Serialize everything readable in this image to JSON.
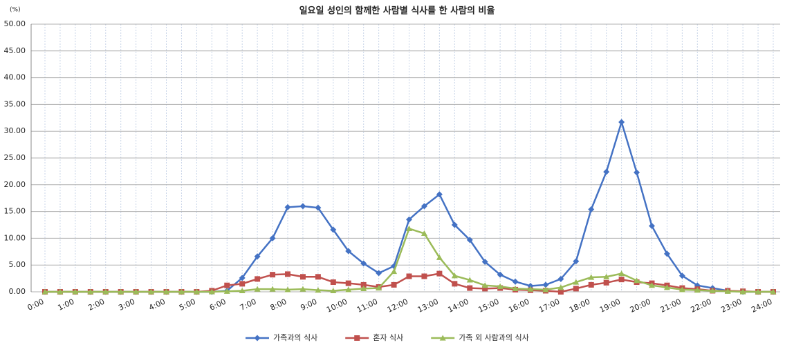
{
  "chart_data": {
    "type": "line",
    "title": "일요일 성인의 함께한 사람별 식사를 한 사람의 비율",
    "y_unit": "(%)",
    "categories": [
      "0:00",
      null,
      "1:00",
      null,
      "2:00",
      null,
      "3:00",
      null,
      "4:00",
      null,
      "5:00",
      null,
      "6:00",
      null,
      "7:00",
      null,
      "8:00",
      null,
      "9:00",
      null,
      "10:00",
      null,
      "11:00",
      null,
      "12:00",
      null,
      "13:00",
      null,
      "14:00",
      null,
      "15:00",
      null,
      "16:00",
      null,
      "17:00",
      null,
      "18:00",
      null,
      "19:00",
      null,
      "20:00",
      null,
      "21:00",
      null,
      "22:00",
      null,
      "23:00",
      null,
      "24:00"
    ],
    "series": [
      {
        "name": "가족과의 식사",
        "color": "#4472c4",
        "marker": "diamond",
        "values": [
          0,
          0,
          0,
          0,
          0,
          0,
          0,
          0,
          0,
          0,
          0,
          0,
          0.2,
          2.6,
          6.6,
          10.0,
          15.8,
          16.0,
          15.7,
          11.6,
          7.6,
          5.3,
          3.5,
          4.8,
          13.5,
          16.0,
          18.2,
          12.5,
          9.7,
          5.6,
          3.2,
          1.9,
          1.1,
          1.3,
          2.4,
          5.7,
          15.4,
          22.4,
          31.7,
          22.3,
          12.3,
          7.1,
          3.0,
          1.2,
          0.7,
          0.2,
          0,
          0,
          0
        ]
      },
      {
        "name": "혼자 식사",
        "color": "#c0504d",
        "marker": "square",
        "values": [
          0,
          0,
          0,
          0,
          0,
          0,
          0,
          0,
          0,
          0,
          0,
          0.2,
          1.2,
          1.5,
          2.4,
          3.2,
          3.3,
          2.8,
          2.8,
          1.8,
          1.6,
          1.3,
          0.9,
          1.3,
          2.9,
          2.9,
          3.4,
          1.5,
          0.7,
          0.6,
          0.7,
          0.4,
          0.3,
          0.2,
          0.0,
          0.6,
          1.3,
          1.7,
          2.3,
          1.8,
          1.6,
          1.2,
          0.7,
          0.5,
          0.2,
          0.2,
          0.1,
          0,
          0
        ]
      },
      {
        "name": "가족 외 사람과의 식사",
        "color": "#9bbb59",
        "marker": "triangle",
        "values": [
          0,
          0,
          0,
          0,
          0,
          0,
          0,
          0,
          0,
          0,
          0,
          0,
          0.1,
          0.2,
          0.5,
          0.5,
          0.4,
          0.5,
          0.3,
          0.2,
          0.4,
          0.6,
          0.7,
          3.8,
          11.8,
          10.9,
          6.4,
          3.0,
          2.2,
          1.2,
          1.0,
          0.6,
          0.5,
          0.4,
          0.8,
          1.8,
          2.7,
          2.8,
          3.4,
          2.1,
          1.2,
          0.8,
          0.4,
          0.3,
          0.2,
          0.1,
          0,
          0,
          0
        ]
      }
    ],
    "ylim": [
      0,
      50
    ],
    "yticks": [
      {
        "value": 0,
        "label": "0.00"
      },
      {
        "value": 5,
        "label": "5.00"
      },
      {
        "value": 10,
        "label": "10.00"
      },
      {
        "value": 15,
        "label": "15.00"
      },
      {
        "value": 20,
        "label": "20.00"
      },
      {
        "value": 25,
        "label": "25.00"
      },
      {
        "value": 30,
        "label": "30.00"
      },
      {
        "value": 35,
        "label": "35.00"
      },
      {
        "value": 40,
        "label": "40.00"
      },
      {
        "value": 45,
        "label": "45.00"
      },
      {
        "value": 50,
        "label": "50.00"
      }
    ],
    "grid": true,
    "legend": "bottom"
  }
}
